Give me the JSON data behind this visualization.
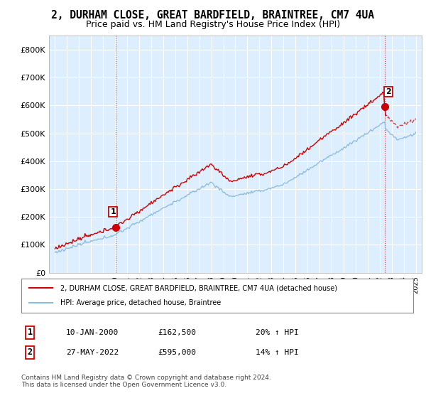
{
  "title": "2, DURHAM CLOSE, GREAT BARDFIELD, BRAINTREE, CM7 4UA",
  "subtitle": "Price paid vs. HM Land Registry's House Price Index (HPI)",
  "ylim": [
    0,
    850000
  ],
  "yticks": [
    0,
    100000,
    200000,
    300000,
    400000,
    500000,
    600000,
    700000,
    800000
  ],
  "ytick_labels": [
    "£0",
    "£100K",
    "£200K",
    "£300K",
    "£400K",
    "£500K",
    "£600K",
    "£700K",
    "£800K"
  ],
  "title_fontsize": 10.5,
  "subtitle_fontsize": 9,
  "background_color": "#ffffff",
  "plot_bg_color": "#ddeeff",
  "grid_color": "#ffffff",
  "sale1_date": 2000.03,
  "sale1_price": 162500,
  "sale1_label": "1",
  "sale2_date": 2022.41,
  "sale2_price": 595000,
  "sale2_label": "2",
  "legend_line1": "2, DURHAM CLOSE, GREAT BARDFIELD, BRAINTREE, CM7 4UA (detached house)",
  "legend_line2": "HPI: Average price, detached house, Braintree",
  "annotation1_date": "10-JAN-2000",
  "annotation1_price": "£162,500",
  "annotation1_hpi": "20% ↑ HPI",
  "annotation2_date": "27-MAY-2022",
  "annotation2_price": "£595,000",
  "annotation2_hpi": "14% ↑ HPI",
  "footer": "Contains HM Land Registry data © Crown copyright and database right 2024.\nThis data is licensed under the Open Government Licence v3.0.",
  "line_color_sale": "#cc0000",
  "line_color_hpi": "#88bbdd",
  "marker_color_sale": "#cc0000"
}
